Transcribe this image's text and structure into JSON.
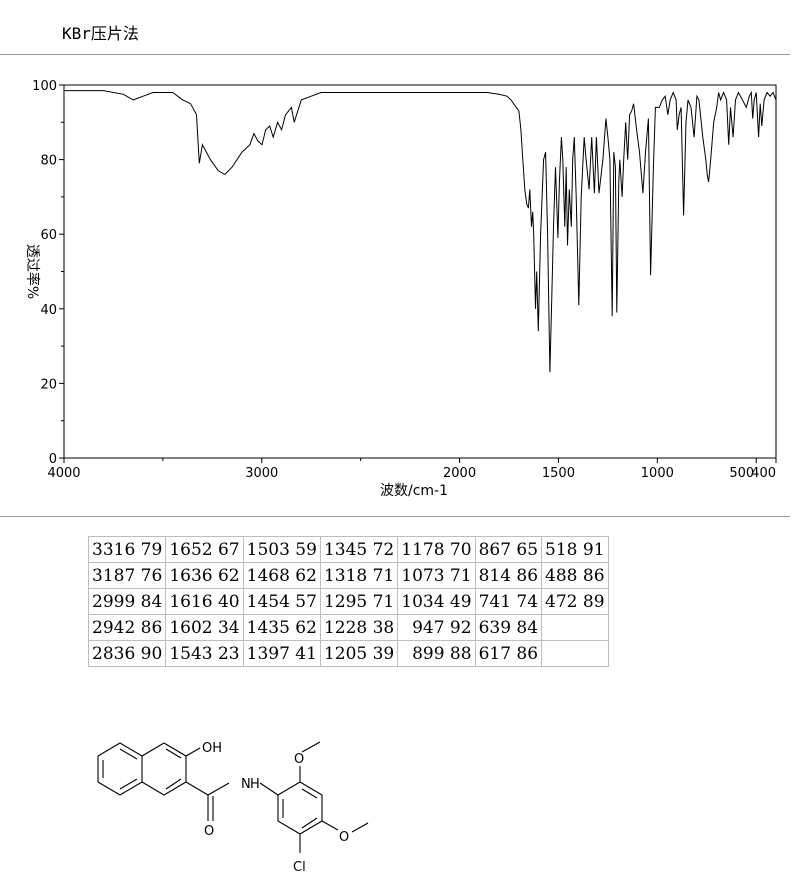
{
  "header": {
    "label": "KBr压片法"
  },
  "chart_data": {
    "type": "line",
    "xlabel": "波数/cm-1",
    "ylabel": "透过率%",
    "xlim": [
      4000,
      400
    ],
    "ylim": [
      0,
      100
    ],
    "x_ticks": [
      4000,
      3000,
      2000,
      1500,
      1000,
      500,
      400
    ],
    "x_tick_labels": [
      "4000",
      "3000",
      "2000",
      "1500",
      "1000",
      "500",
      "400"
    ],
    "y_ticks": [
      0,
      20,
      40,
      60,
      80,
      100
    ],
    "y_tick_labels": [
      "0",
      "20",
      "40",
      "60",
      "80",
      "100"
    ],
    "series": [
      {
        "x": [
          4000,
          3800,
          3700,
          3650,
          3600,
          3550,
          3450,
          3400,
          3360,
          3330,
          3316,
          3300,
          3260,
          3220,
          3187,
          3150,
          3100,
          3060,
          3040,
          3020,
          2999,
          2980,
          2960,
          2942,
          2920,
          2900,
          2880,
          2850,
          2836,
          2800,
          2750,
          2700,
          2500,
          2300,
          2100,
          2000,
          1900,
          1860,
          1800,
          1760,
          1740,
          1700,
          1690,
          1680,
          1670,
          1660,
          1652,
          1645,
          1636,
          1630,
          1625,
          1616,
          1610,
          1602,
          1590,
          1575,
          1565,
          1555,
          1543,
          1535,
          1525,
          1515,
          1503,
          1495,
          1485,
          1478,
          1468,
          1461,
          1454,
          1445,
          1435,
          1428,
          1420,
          1410,
          1397,
          1385,
          1370,
          1360,
          1345,
          1332,
          1318,
          1308,
          1295,
          1275,
          1260,
          1250,
          1240,
          1228,
          1220,
          1212,
          1205,
          1195,
          1190,
          1178,
          1170,
          1160,
          1150,
          1140,
          1130,
          1120,
          1105,
          1090,
          1073,
          1060,
          1045,
          1034,
          1020,
          1010,
          990,
          975,
          960,
          947,
          935,
          920,
          905,
          899,
          890,
          880,
          867,
          855,
          845,
          830,
          814,
          800,
          790,
          770,
          755,
          748,
          741,
          730,
          715,
          700,
          690,
          680,
          665,
          650,
          639,
          630,
          617,
          605,
          590,
          570,
          550,
          535,
          525,
          518,
          510,
          500,
          488,
          480,
          472,
          460,
          445,
          430,
          415,
          400
        ],
        "y": [
          98.5,
          98.5,
          97.5,
          96,
          97,
          98,
          98,
          96,
          95,
          92,
          79,
          84,
          80,
          77,
          76,
          78,
          82,
          84,
          87,
          85,
          84,
          88,
          89,
          86,
          90,
          88,
          92,
          94,
          90,
          96,
          97,
          98,
          98,
          98,
          98,
          98,
          98,
          98,
          97.5,
          97,
          96,
          93,
          88,
          80,
          72,
          68,
          67,
          72,
          62,
          66,
          60,
          40,
          50,
          34,
          60,
          80,
          82,
          60,
          23,
          40,
          62,
          78,
          59,
          74,
          86,
          80,
          62,
          78,
          57,
          72,
          62,
          80,
          86,
          70,
          41,
          70,
          86,
          80,
          72,
          86,
          71,
          86,
          71,
          80,
          91,
          86,
          80,
          38,
          82,
          78,
          39,
          74,
          80,
          70,
          80,
          90,
          80,
          92,
          93,
          95,
          88,
          82,
          71,
          82,
          91,
          49,
          78,
          94,
          94,
          96,
          97,
          92,
          96,
          98,
          96,
          88,
          92,
          94,
          65,
          90,
          96,
          94,
          86,
          97,
          96,
          86,
          80,
          76,
          74,
          80,
          90,
          94,
          98,
          96,
          98,
          96,
          84,
          94,
          86,
          96,
          98,
          96,
          94,
          97,
          98,
          91,
          96,
          98,
          86,
          95,
          89,
          96,
          98,
          97,
          98,
          96
        ]
      }
    ]
  },
  "peaks": [
    [
      "3316 79",
      "1652 67",
      "1503 59",
      "1345 72",
      "1178 70",
      "867 65",
      "518 91"
    ],
    [
      "3187 76",
      "1636 62",
      "1468 62",
      "1318 71",
      "1073 71",
      "814 86",
      "488 86"
    ],
    [
      "2999 84",
      "1616 40",
      "1454 57",
      "1295 71",
      "1034 49",
      "741 74",
      "472 89"
    ],
    [
      "2942 86",
      "1602 34",
      "1435 62",
      "1228 38",
      " 947 92",
      "639 84",
      ""
    ],
    [
      "2836 90",
      "1543 23",
      "1397 41",
      "1205 39",
      " 899 88",
      "617 86",
      ""
    ]
  ],
  "structure": {
    "labels": {
      "oh": "OH",
      "nh": "N",
      "h": "H",
      "o_carbonyl": "O",
      "cl": "Cl",
      "o_methoxy_top": "O",
      "o_methoxy_right": "O"
    }
  }
}
